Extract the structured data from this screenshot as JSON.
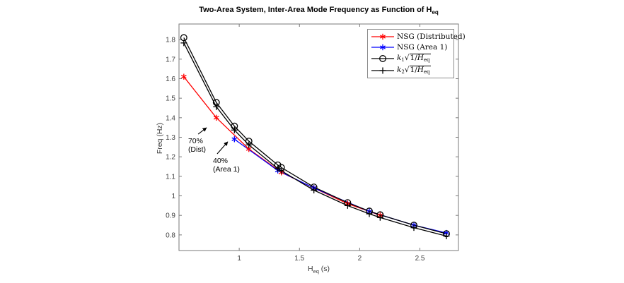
{
  "figure": {
    "title_main": "Two-Area System, Inter-Area Mode Frequency as Function of H",
    "title_sub": "eq"
  },
  "axes": {
    "xlabel_var": "H",
    "xlabel_sub": "eq",
    "xlabel_unit": " (s)",
    "ylabel": "Freq (Hz)"
  },
  "legend": {
    "items": [
      {
        "label": "NSG (Distributed)"
      },
      {
        "label": "NSG (Area 1)"
      },
      {
        "var": "k",
        "var_sub": "1",
        "radical": "√",
        "radicand": "1/",
        "radicand_var": "H",
        "radicand_sub": "eq"
      },
      {
        "var": "k",
        "var_sub": "2",
        "radical": "√",
        "radicand": "1/",
        "radicand_var": "H",
        "radicand_sub": "eq"
      }
    ]
  },
  "chart_data": {
    "type": "line",
    "title": "Two-Area System, Inter-Area Mode Frequency as Function of H_eq",
    "xlabel": "H_eq (s)",
    "ylabel": "Freq (Hz)",
    "xlim": [
      0.5,
      2.82
    ],
    "ylim": [
      0.72,
      1.88
    ],
    "xticks": [
      1,
      1.5,
      2,
      2.5
    ],
    "xtick_labels": [
      "1",
      "1.5",
      "2",
      "2.5"
    ],
    "yticks": [
      0.8,
      0.9,
      1.0,
      1.1,
      1.2,
      1.3,
      1.4,
      1.5,
      1.6,
      1.7,
      1.8
    ],
    "ytick_labels": [
      "0.8",
      "0.9",
      "1",
      "1.1",
      "1.2",
      "1.3",
      "1.4",
      "1.5",
      "1.6",
      "1.7",
      "1.8"
    ],
    "grid": false,
    "legend_position": "top-right",
    "axis_color": "#7a7a7a",
    "series": [
      {
        "name": "NSG (Distributed)",
        "color": "#ff0000",
        "marker": "asterisk",
        "x": [
          0.54,
          0.81,
          1.08,
          1.35,
          1.62,
          1.9,
          2.17
        ],
        "y": [
          1.61,
          1.4,
          1.24,
          1.12,
          1.04,
          0.96,
          0.9
        ]
      },
      {
        "name": "NSG (Area 1)",
        "color": "#0000ff",
        "marker": "asterisk",
        "x": [
          0.96,
          1.32,
          1.62,
          2.08,
          2.45,
          2.72
        ],
        "y": [
          1.29,
          1.13,
          1.04,
          0.92,
          0.85,
          0.81
        ]
      },
      {
        "name": "k1*sqrt(1/Heq)",
        "color": "#000000",
        "marker": "circle",
        "x": [
          0.54,
          0.81,
          0.96,
          1.08,
          1.32,
          1.35,
          1.62,
          1.9,
          2.08,
          2.17,
          2.45,
          2.72
        ],
        "y": [
          1.81,
          1.478,
          1.357,
          1.28,
          1.158,
          1.145,
          1.045,
          0.965,
          0.922,
          0.903,
          0.85,
          0.806
        ]
      },
      {
        "name": "k2*sqrt(1/Heq)",
        "color": "#000000",
        "marker": "plus",
        "x": [
          0.54,
          0.81,
          0.96,
          1.08,
          1.32,
          1.35,
          1.62,
          1.9,
          2.08,
          2.17,
          2.45,
          2.72
        ],
        "y": [
          1.783,
          1.456,
          1.337,
          1.261,
          1.14,
          1.128,
          1.029,
          0.95,
          0.908,
          0.889,
          0.837,
          0.794
        ]
      }
    ],
    "annotations": [
      {
        "lines": [
          "70%",
          "(Dist)"
        ],
        "text_pos": [
          0.576,
          1.302
        ],
        "arrow": {
          "from": [
            0.659,
            1.316
          ],
          "to": [
            0.729,
            1.349
          ]
        }
      },
      {
        "lines": [
          "40%",
          "(Area 1)"
        ],
        "text_pos": [
          0.782,
          1.201
        ],
        "arrow": {
          "from": [
            0.817,
            1.215
          ],
          "to": [
            0.905,
            1.277
          ]
        }
      }
    ]
  }
}
